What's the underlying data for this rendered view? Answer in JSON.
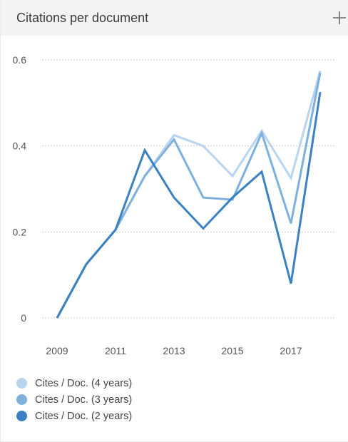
{
  "panel": {
    "title": "Citations per document",
    "expand_icon": "plus-icon"
  },
  "chart_data": {
    "type": "line",
    "title": "Citations per document",
    "xlabel": "",
    "ylabel": "",
    "x": [
      2009,
      2010,
      2011,
      2012,
      2013,
      2014,
      2015,
      2016,
      2017,
      2018
    ],
    "x_tick_labels": [
      "2009",
      "2011",
      "2013",
      "2015",
      "2017"
    ],
    "x_tick_values": [
      2009,
      2011,
      2013,
      2015,
      2017
    ],
    "y_tick_labels": [
      "0",
      "0.2",
      "0.4",
      "0.6"
    ],
    "y_tick_values": [
      0,
      0.2,
      0.4,
      0.6
    ],
    "ylim": [
      0,
      0.6
    ],
    "grid": "horizontal dotted",
    "legend_position": "bottom-left",
    "series": [
      {
        "name": "Cites / Doc. (4 years)",
        "color": "#b8d4ee",
        "values": [
          0,
          0.125,
          0.205,
          0.33,
          0.425,
          0.4,
          0.33,
          0.435,
          0.325,
          0.575
        ]
      },
      {
        "name": "Cites / Doc. (3 years)",
        "color": "#7eb0dd",
        "values": [
          0,
          0.125,
          0.205,
          0.33,
          0.415,
          0.28,
          0.275,
          0.43,
          0.22,
          0.57
        ]
      },
      {
        "name": "Cites / Doc. (2 years)",
        "color": "#3a80c3",
        "values": [
          0,
          0.125,
          0.205,
          0.39,
          0.28,
          0.208,
          0.28,
          0.34,
          0.08,
          0.525
        ]
      }
    ]
  }
}
